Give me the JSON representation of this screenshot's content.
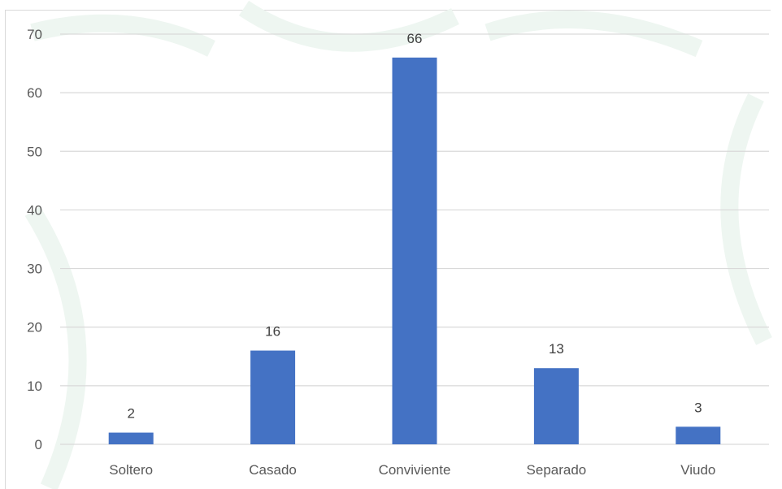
{
  "chart_data": {
    "type": "bar",
    "categories": [
      "Soltero",
      "Casado",
      "Conviviente",
      "Separado",
      "Viudo"
    ],
    "values": [
      2,
      16,
      66,
      13,
      3
    ],
    "title": "",
    "xlabel": "",
    "ylabel": "",
    "ylim": [
      0,
      70
    ],
    "yticks": [
      0,
      10,
      20,
      30,
      40,
      50,
      60,
      70
    ],
    "grid": true,
    "legend": "none",
    "data_labels": true,
    "bar_color": "#4472C4",
    "grid_color": "#d9d9d9",
    "label_color": "#595959"
  }
}
